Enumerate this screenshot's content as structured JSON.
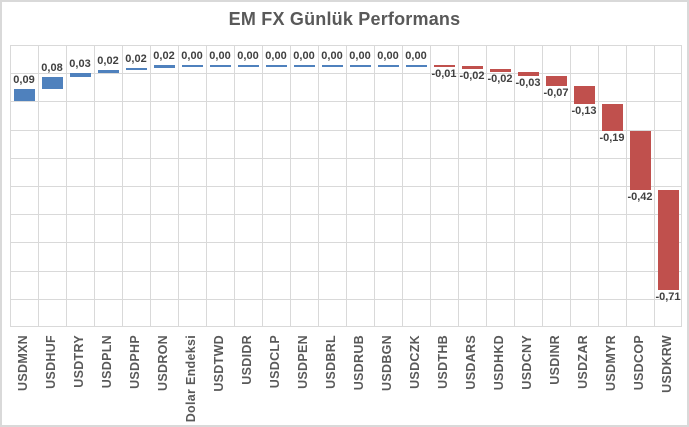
{
  "chart_data": {
    "type": "bar",
    "variant": "waterfall",
    "title": "EM FX Günlük Performans",
    "categories": [
      "USDMXN",
      "USDHUF",
      "USDTRY",
      "USDPLN",
      "USDPHP",
      "USDRON",
      "Dolar Endeksi",
      "USDTWD",
      "USDIDR",
      "USDCLP",
      "USDPEN",
      "USDBRL",
      "USDRUB",
      "USDBGN",
      "USDCZK",
      "USDTHB",
      "USDARS",
      "USDHKD",
      "USDCNY",
      "USDINR",
      "USDZAR",
      "USDMYR",
      "USDCOP",
      "USDKRW"
    ],
    "values": [
      0.09,
      0.08,
      0.03,
      0.02,
      0.02,
      0.02,
      0.0,
      0.0,
      0.0,
      0.0,
      0.0,
      0.0,
      0.0,
      0.0,
      0.0,
      -0.01,
      -0.02,
      -0.02,
      -0.03,
      -0.07,
      -0.13,
      -0.19,
      -0.42,
      -0.71
    ],
    "value_labels": [
      "0,09",
      "0,08",
      "0,03",
      "0,02",
      "0,02",
      "0,02",
      "0,00",
      "0,00",
      "0,00",
      "0,00",
      "0,00",
      "0,00",
      "0,00",
      "0,00",
      "0,00",
      "-0,01",
      "-0,02",
      "-0,02",
      "-0,03",
      "-0,07",
      "-0,13",
      "-0,19",
      "-0,42",
      "-0,71"
    ],
    "decimal_separator": ",",
    "xlabel": "",
    "ylabel": "",
    "ylim": [
      -1.6,
      0.4
    ],
    "grid_step": 0.2,
    "grid": true,
    "legend": false,
    "axis_tick_labels_visible": false,
    "colors": {
      "positive": "#4f81bd",
      "negative": "#c0504d",
      "gridline": "#d9d9d9",
      "title": "#595959",
      "value_label": "#404040",
      "axis_label": "#595959",
      "background": "#ffffff",
      "frame_border": "#d9d9d9"
    }
  }
}
